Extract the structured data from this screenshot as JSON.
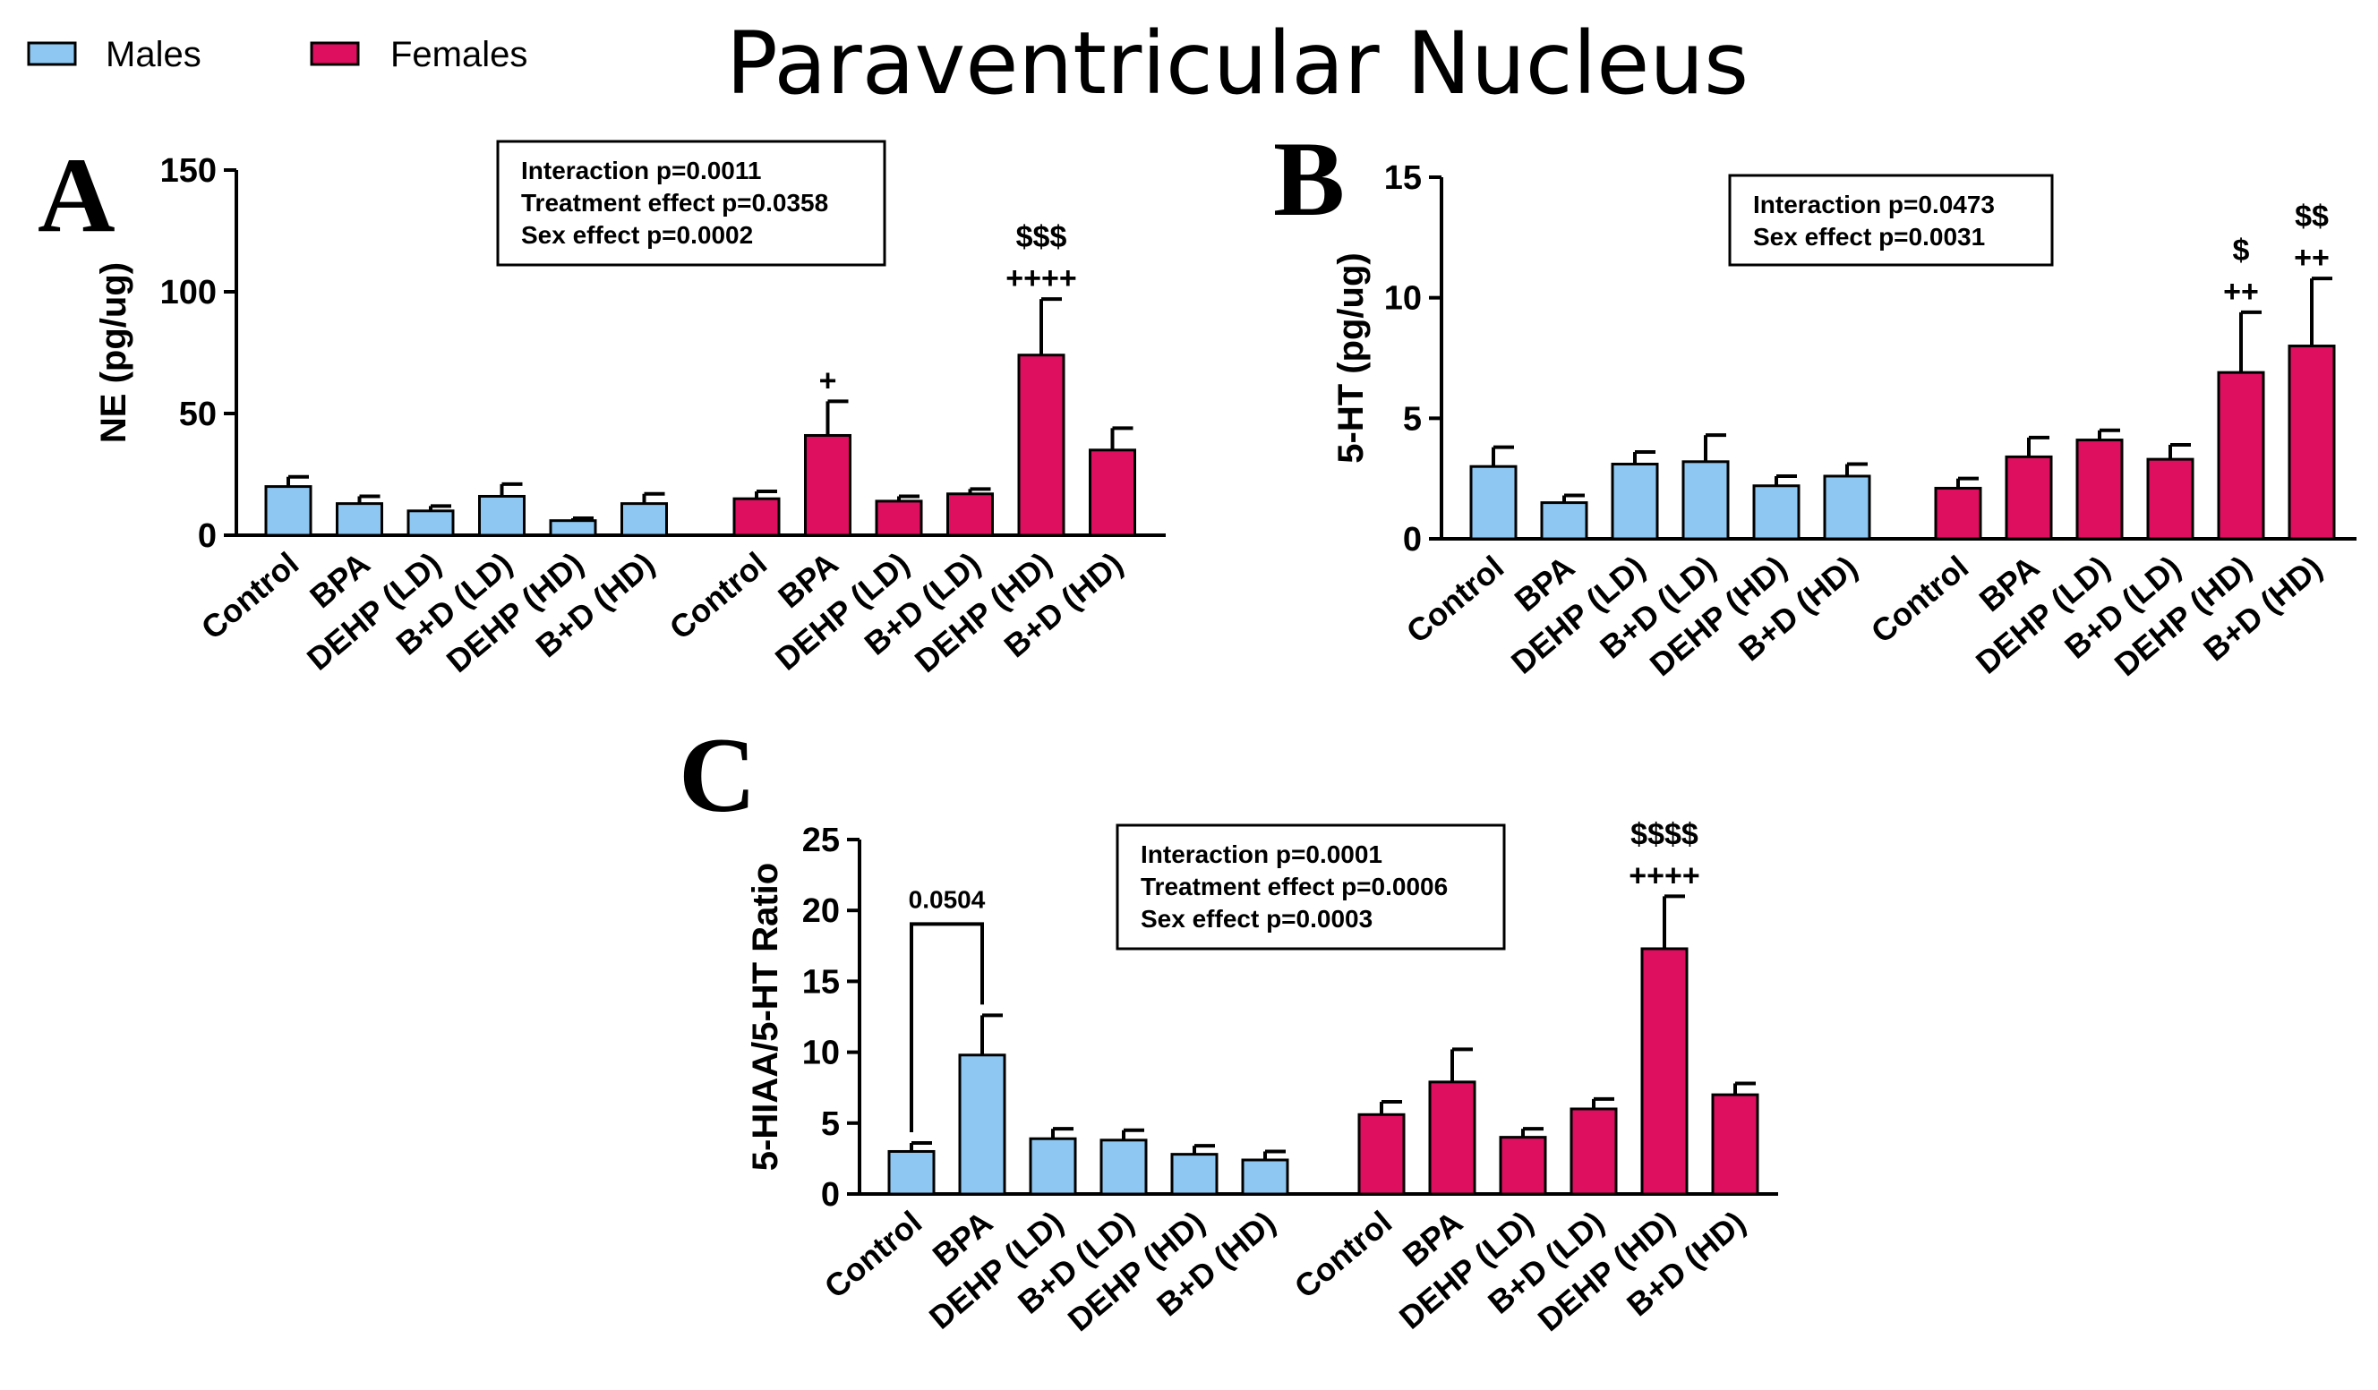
{
  "figure": {
    "title": "Paraventricular Nucleus",
    "legend": [
      {
        "label": "Males",
        "color": "#8ec8f2"
      },
      {
        "label": "Females",
        "color": "#df0f5f"
      }
    ]
  },
  "chart_data": [
    {
      "panel": "A",
      "type": "bar",
      "ylabel": "NE (pg/ug)",
      "ylim": [
        0,
        150
      ],
      "yticks": [
        0,
        50,
        100,
        150
      ],
      "categories": [
        "Control",
        "BPA",
        "DEHP (LD)",
        "B+D (LD)",
        "DEHP (HD)",
        "B+D (HD)"
      ],
      "series": [
        {
          "name": "Males",
          "values": [
            20,
            13,
            10,
            16,
            6,
            13
          ],
          "errors": [
            4,
            3,
            2,
            5,
            1,
            4
          ]
        },
        {
          "name": "Females",
          "values": [
            15,
            41,
            14,
            17,
            74,
            35
          ],
          "errors": [
            3,
            14,
            2,
            2,
            23,
            9
          ]
        }
      ],
      "stats": [
        "Interaction p=0.0011",
        "Treatment effect p=0.0358",
        "Sex effect p=0.0002"
      ],
      "annotations": [
        {
          "series": "Females",
          "category": "BPA",
          "lines": [
            "+"
          ]
        },
        {
          "series": "Females",
          "category": "DEHP (HD)",
          "lines": [
            "$$$",
            "++++"
          ]
        }
      ]
    },
    {
      "panel": "B",
      "type": "bar",
      "ylabel": "5-HT (pg/ug)",
      "ylim": [
        0,
        15
      ],
      "yticks": [
        0,
        5,
        10,
        15
      ],
      "categories": [
        "Control",
        "BPA",
        "DEHP (LD)",
        "B+D (LD)",
        "DEHP (HD)",
        "B+D (HD)"
      ],
      "series": [
        {
          "name": "Males",
          "values": [
            3.0,
            1.5,
            3.1,
            3.2,
            2.2,
            2.6
          ],
          "errors": [
            0.8,
            0.3,
            0.5,
            1.1,
            0.4,
            0.5
          ]
        },
        {
          "name": "Females",
          "values": [
            2.1,
            3.4,
            4.1,
            3.3,
            6.9,
            8.0
          ],
          "errors": [
            0.4,
            0.8,
            0.4,
            0.6,
            2.5,
            2.8
          ]
        }
      ],
      "stats": [
        "Interaction p=0.0473",
        "Sex effect p=0.0031"
      ],
      "annotations": [
        {
          "series": "Females",
          "category": "DEHP (HD)",
          "lines": [
            "$",
            "++"
          ]
        },
        {
          "series": "Females",
          "category": "B+D (HD)",
          "lines": [
            "$$",
            "++"
          ]
        }
      ]
    },
    {
      "panel": "C",
      "type": "bar",
      "ylabel": "5-HIAA/5-HT Ratio",
      "ylim": [
        0,
        25
      ],
      "yticks": [
        0,
        5,
        10,
        15,
        20,
        25
      ],
      "categories": [
        "Control",
        "BPA",
        "DEHP (LD)",
        "B+D (LD)",
        "DEHP (HD)",
        "B+D (HD)"
      ],
      "series": [
        {
          "name": "Males",
          "values": [
            3.0,
            9.8,
            3.9,
            3.8,
            2.8,
            2.4
          ],
          "errors": [
            0.6,
            2.8,
            0.7,
            0.7,
            0.6,
            0.6
          ]
        },
        {
          "name": "Females",
          "values": [
            5.6,
            7.9,
            4.0,
            6.0,
            17.3,
            7.0
          ],
          "errors": [
            0.9,
            2.3,
            0.6,
            0.7,
            3.7,
            0.8
          ]
        }
      ],
      "stats": [
        "Interaction p=0.0001",
        "Treatment effect p=0.0006",
        "Sex effect p=0.0003"
      ],
      "annotations": [
        {
          "series": "Females",
          "category": "DEHP (HD)",
          "lines": [
            "$$$$",
            "++++"
          ]
        }
      ],
      "bracket": {
        "series": "Males",
        "from": "Control",
        "to": "BPA",
        "label": "0.0504"
      }
    }
  ]
}
